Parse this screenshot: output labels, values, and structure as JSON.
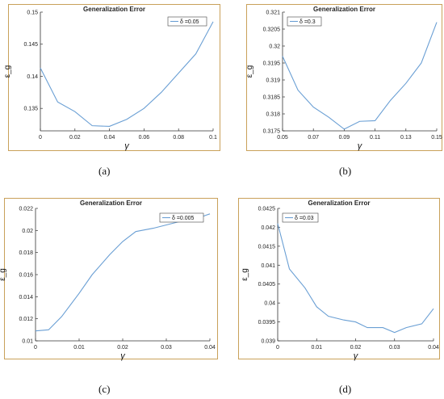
{
  "chart_data": [
    {
      "type": "line",
      "panel": "(a)",
      "title": "Generalization Error",
      "xlabel": "γ",
      "ylabel": "ε_g",
      "legend": "δ =0.05",
      "legend_position": "top-right",
      "xlim": [
        0,
        0.1
      ],
      "ylim": [
        0.1315,
        0.15
      ],
      "xticks": [
        0,
        0.02,
        0.04,
        0.06,
        0.08,
        0.1
      ],
      "xtick_labels": [
        "0",
        "0.02",
        "0.04",
        "0.06",
        "0.08",
        "0.1"
      ],
      "yticks": [
        0.135,
        0.14,
        0.145,
        0.15
      ],
      "ytick_labels": [
        "0.135",
        "0.14",
        "0.145",
        "0.15"
      ],
      "x": [
        0,
        0.01,
        0.02,
        0.03,
        0.04,
        0.05,
        0.06,
        0.07,
        0.08,
        0.09,
        0.1
      ],
      "y": [
        0.1413,
        0.136,
        0.1345,
        0.1323,
        0.1322,
        0.1333,
        0.135,
        0.1375,
        0.1405,
        0.1435,
        0.1485
      ]
    },
    {
      "type": "line",
      "panel": "(b)",
      "title": "Generalization Error",
      "xlabel": "γ",
      "ylabel": "ε_g",
      "legend": "δ =0.3",
      "legend_position": "top-left",
      "xlim": [
        0.05,
        0.15
      ],
      "ylim": [
        0.3175,
        0.321
      ],
      "xticks": [
        0.05,
        0.07,
        0.09,
        0.11,
        0.13,
        0.15
      ],
      "xtick_labels": [
        "0.05",
        "0.07",
        "0.09",
        "0.11",
        "0.13",
        "0.15"
      ],
      "yticks": [
        0.3175,
        0.318,
        0.3185,
        0.319,
        0.3195,
        0.32,
        0.3205,
        0.321
      ],
      "ytick_labels": [
        "0.3175",
        "0.318",
        "0.3185",
        "0.319",
        "0.3195",
        "0.32",
        "0.3205",
        "0.321"
      ],
      "x": [
        0.05,
        0.06,
        0.07,
        0.08,
        0.09,
        0.1,
        0.11,
        0.12,
        0.13,
        0.14,
        0.15
      ],
      "y": [
        0.3197,
        0.3187,
        0.3182,
        0.3179,
        0.31755,
        0.31778,
        0.3178,
        0.3184,
        0.3189,
        0.3195,
        0.3207
      ]
    },
    {
      "type": "line",
      "panel": "(c)",
      "title": "Generalization Error",
      "xlabel": "γ",
      "ylabel": "ε_g",
      "legend": "δ =0.005",
      "legend_position": "top-right",
      "xlim": [
        0,
        0.04
      ],
      "ylim": [
        0.01,
        0.022
      ],
      "xticks": [
        0,
        0.01,
        0.02,
        0.03,
        0.04
      ],
      "xtick_labels": [
        "0",
        "0.01",
        "0.02",
        "0.03",
        "0.04"
      ],
      "yticks": [
        0.01,
        0.012,
        0.014,
        0.016,
        0.018,
        0.02,
        0.022
      ],
      "ytick_labels": [
        "0.01",
        "0.012",
        "0.014",
        "0.016",
        "0.018",
        "0.02",
        "0.022"
      ],
      "x": [
        0,
        0.003,
        0.006,
        0.01,
        0.013,
        0.017,
        0.02,
        0.023,
        0.027,
        0.03,
        0.033,
        0.037,
        0.04
      ],
      "y": [
        0.0109,
        0.011,
        0.0122,
        0.0143,
        0.016,
        0.0178,
        0.019,
        0.0199,
        0.0202,
        0.0205,
        0.0208,
        0.0211,
        0.0215
      ]
    },
    {
      "type": "line",
      "panel": "(d)",
      "title": "Generalization Error",
      "xlabel": "γ",
      "ylabel": "ε_g",
      "legend": "δ =0.03",
      "legend_position": "top-left",
      "xlim": [
        0,
        0.04
      ],
      "ylim": [
        0.039,
        0.0425
      ],
      "xticks": [
        0,
        0.01,
        0.02,
        0.03,
        0.04
      ],
      "xtick_labels": [
        "0",
        "0.01",
        "0.02",
        "0.03",
        "0.04"
      ],
      "yticks": [
        0.039,
        0.0395,
        0.04,
        0.0405,
        0.041,
        0.0415,
        0.042,
        0.0425
      ],
      "ytick_labels": [
        "0.039",
        "0.0395",
        "0.04",
        "0.0405",
        "0.041",
        "0.0415",
        "0.042",
        "0.0425"
      ],
      "x": [
        0,
        0.003,
        0.007,
        0.01,
        0.013,
        0.017,
        0.02,
        0.023,
        0.025,
        0.027,
        0.03,
        0.033,
        0.037,
        0.04
      ],
      "y": [
        0.0421,
        0.0409,
        0.0404,
        0.0399,
        0.03965,
        0.03955,
        0.0395,
        0.03935,
        0.03935,
        0.03935,
        0.03922,
        0.03935,
        0.03945,
        0.03985
      ]
    }
  ]
}
